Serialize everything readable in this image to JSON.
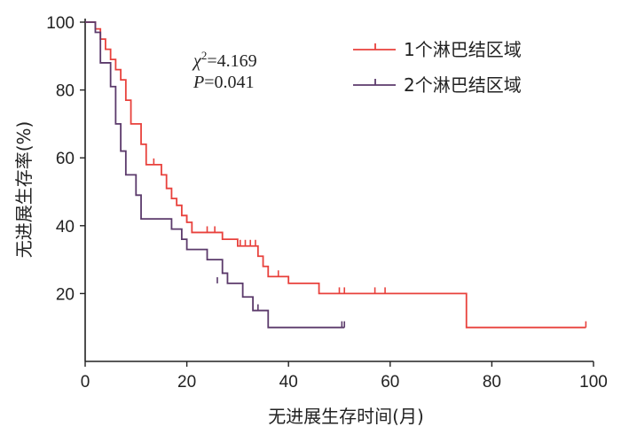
{
  "chart_data": {
    "type": "line",
    "subtype": "kaplan-meier",
    "xlabel": "无进展生存时间(月)",
    "ylabel": "无进展生存率(%)",
    "xlim": [
      0,
      100
    ],
    "ylim": [
      0,
      100
    ],
    "xticks": [
      "0",
      "20",
      "40",
      "60",
      "80",
      "100"
    ],
    "yticks": [
      "20",
      "40",
      "60",
      "80",
      "100"
    ],
    "legend_position": "top-right",
    "annotation": {
      "chi_symbol": "χ",
      "chi_sup": "2",
      "chi_value": "=4.169",
      "p_symbol": "P",
      "p_value": "=0.041"
    },
    "series": [
      {
        "name": "1个淋巴结区域",
        "color": "#e8413c",
        "steps": [
          [
            0,
            100
          ],
          [
            2,
            98
          ],
          [
            3,
            95
          ],
          [
            4,
            92
          ],
          [
            5,
            89
          ],
          [
            6,
            86
          ],
          [
            7,
            83
          ],
          [
            8,
            77
          ],
          [
            9,
            70
          ],
          [
            11,
            64
          ],
          [
            12,
            58
          ],
          [
            15,
            55
          ],
          [
            16,
            51
          ],
          [
            17,
            48
          ],
          [
            18,
            46
          ],
          [
            19,
            43
          ],
          [
            20,
            41
          ],
          [
            21,
            38
          ],
          [
            27,
            36
          ],
          [
            30,
            34
          ],
          [
            34,
            31
          ],
          [
            35,
            28
          ],
          [
            36,
            25
          ],
          [
            40,
            23
          ],
          [
            46,
            20
          ],
          [
            75,
            10
          ],
          [
            98.5,
            10
          ]
        ],
        "censor": [
          [
            13.5,
            58
          ],
          [
            20,
            41
          ],
          [
            24,
            38
          ],
          [
            25.5,
            38
          ],
          [
            30.5,
            34
          ],
          [
            31.5,
            34
          ],
          [
            32.5,
            34
          ],
          [
            33.5,
            34
          ],
          [
            38,
            25
          ],
          [
            50,
            20
          ],
          [
            51,
            20
          ],
          [
            57,
            20
          ],
          [
            59,
            20
          ],
          [
            98.5,
            10
          ]
        ]
      },
      {
        "name": "2个淋巴结区域",
        "color": "#5b3a6b",
        "steps": [
          [
            0,
            100
          ],
          [
            2,
            97
          ],
          [
            3,
            88
          ],
          [
            5,
            81
          ],
          [
            6,
            70
          ],
          [
            7,
            62
          ],
          [
            8,
            55
          ],
          [
            10,
            49
          ],
          [
            11,
            42
          ],
          [
            17,
            39
          ],
          [
            19,
            36
          ],
          [
            20,
            33
          ],
          [
            24,
            30
          ],
          [
            27,
            26
          ],
          [
            28,
            23
          ],
          [
            31,
            19
          ],
          [
            33,
            15
          ],
          [
            36,
            10
          ],
          [
            51,
            10
          ]
        ],
        "censor": [
          [
            26,
            23
          ],
          [
            34,
            15
          ],
          [
            50.5,
            10
          ],
          [
            51,
            10
          ]
        ]
      }
    ]
  }
}
